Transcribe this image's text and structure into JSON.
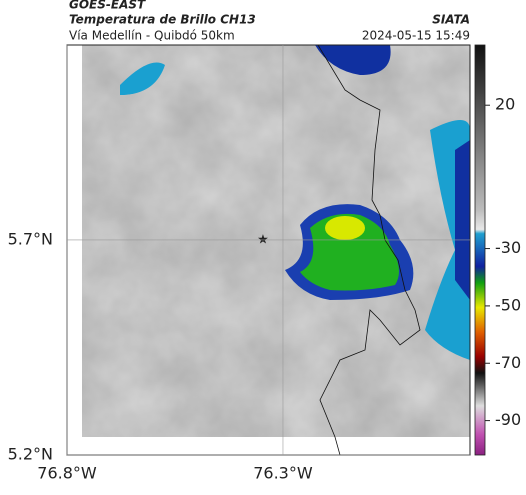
{
  "header": {
    "source": "GOES-EAST",
    "title": "Temperatura de Brillo CH13",
    "subtitle": "Vía Medellín - Quibdó 50km",
    "agency": "SIATA",
    "timestamp": "2024-05-15 15:49"
  },
  "map": {
    "xlim": [
      -76.8,
      -75.867
    ],
    "ylim": [
      5.2,
      6.153
    ],
    "xticks": [
      {
        "value": -76.8,
        "label": "76.8°W"
      },
      {
        "value": -76.3,
        "label": "76.3°W"
      }
    ],
    "yticks": [
      {
        "value": 5.7,
        "label": "5.7°N"
      },
      {
        "value": 5.2,
        "label": "5.2°N"
      }
    ]
  },
  "colorbar": {
    "clim": [
      41,
      -102
    ],
    "ticks": [
      20,
      -30,
      -50,
      -70,
      -90
    ]
  }
}
